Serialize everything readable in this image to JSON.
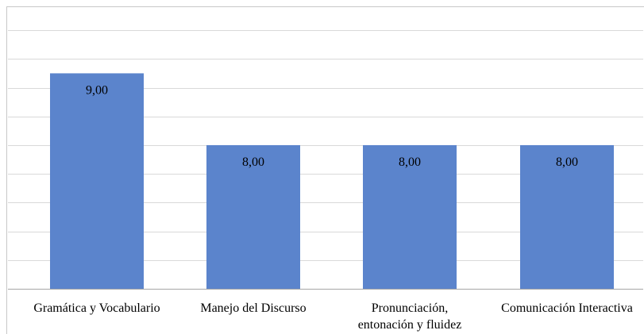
{
  "chart_data": {
    "type": "bar",
    "categories": [
      [
        "Gramática y Vocabulario"
      ],
      [
        "Manejo del Discurso"
      ],
      [
        "Pronunciación,",
        "entonación y fluidez"
      ],
      [
        "Comunicación Interactiva"
      ]
    ],
    "values": [
      9.0,
      8.0,
      8.0,
      8.0
    ],
    "data_labels": [
      "9,00",
      "8,00",
      "8,00",
      "8,00"
    ],
    "bar_color": "#5b84cc",
    "ylim": [
      6,
      9.8
    ],
    "gridline_step": 0.4,
    "grid": true,
    "legend": "none",
    "title": "",
    "xlabel": "",
    "ylabel": ""
  }
}
